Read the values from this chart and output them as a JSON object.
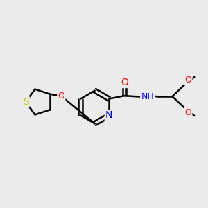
{
  "bg_color": "#ebebeb",
  "bond_color": "#000000",
  "bond_width": 1.8,
  "atom_colors": {
    "S": "#cccc00",
    "N": "#0000ff",
    "O": "#ff0000",
    "C": "#000000",
    "H": "#000000"
  },
  "font_size": 9,
  "fig_width": 3.0,
  "fig_height": 3.0,
  "dpi": 100
}
